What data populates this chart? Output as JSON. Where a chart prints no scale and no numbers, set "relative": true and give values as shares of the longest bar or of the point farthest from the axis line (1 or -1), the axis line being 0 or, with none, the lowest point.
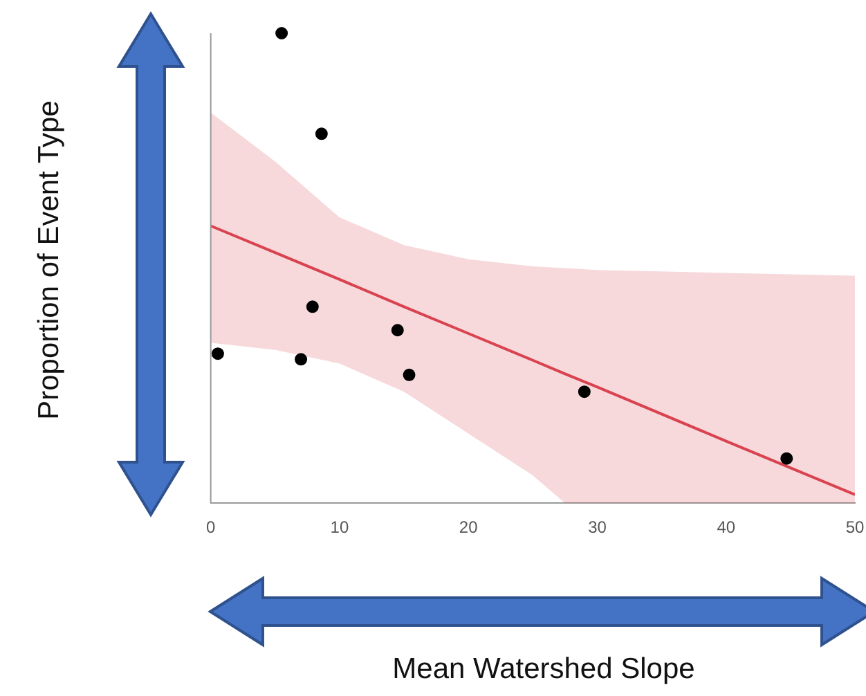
{
  "chart_data": {
    "type": "scatter",
    "relative": true,
    "xlabel": "Mean Watershed Slope",
    "ylabel": "Proportion of Event Type",
    "xlim": [
      0,
      50
    ],
    "xticks": [
      0,
      10,
      20,
      30,
      40,
      50
    ],
    "tick_labels": "x",
    "series": [
      {
        "type": "line",
        "color": "#d9434f",
        "line_style": "solid",
        "x": [
          0,
          5,
          10,
          15,
          20,
          25,
          27.5,
          30,
          40,
          50
        ],
        "values": [
          0.59,
          0.533,
          0.476,
          0.418,
          0.361,
          0.304,
          0.275,
          0.247,
          0.132,
          0.018
        ],
        "lower": [
          0.341,
          0.326,
          0.297,
          0.237,
          0.148,
          0.059,
          0,
          0,
          0,
          0
        ],
        "upper": [
          0.831,
          0.727,
          0.608,
          0.549,
          0.519,
          0.504,
          0.5,
          0.496,
          0.49,
          0.484
        ]
      },
      {
        "color": "#000000",
        "marker": "circle",
        "x": [
          0.55,
          5.5,
          7.0,
          7.9,
          8.6,
          14.5,
          15.4,
          29.0,
          44.7
        ],
        "values": [
          0.318,
          1,
          0.306,
          0.418,
          0.786,
          0.368,
          0.273,
          0.237,
          0.095
        ]
      }
    ]
  }
}
